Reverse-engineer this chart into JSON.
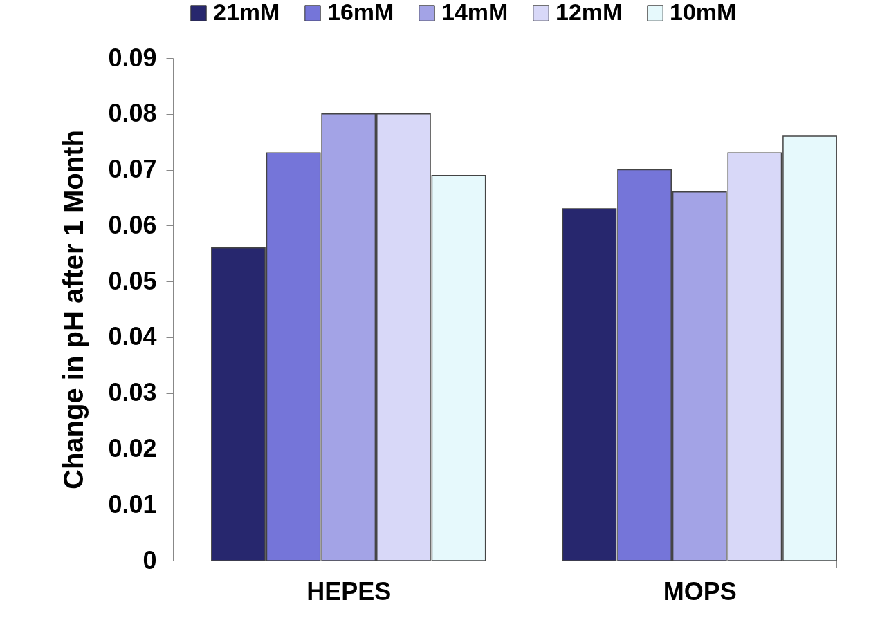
{
  "chart_data": {
    "type": "bar",
    "ylabel": "Change in pH after 1 Month",
    "categories": [
      "HEPES",
      "MOPS"
    ],
    "series": [
      {
        "name": "21mM",
        "color": "#27276e",
        "values": [
          0.056,
          0.063
        ]
      },
      {
        "name": "16mM",
        "color": "#7575d9",
        "values": [
          0.073,
          0.07
        ]
      },
      {
        "name": "14mM",
        "color": "#a3a3e6",
        "values": [
          0.08,
          0.066
        ]
      },
      {
        "name": "12mM",
        "color": "#d8d8f8",
        "values": [
          0.08,
          0.073
        ]
      },
      {
        "name": "10mM",
        "color": "#e6f9fc",
        "values": [
          0.069,
          0.076
        ]
      }
    ],
    "ylim": [
      0,
      0.09
    ],
    "yticks": [
      0,
      0.01,
      0.02,
      0.03,
      0.04,
      0.05,
      0.06,
      0.07,
      0.08,
      0.09
    ],
    "grid": false,
    "legend": "top"
  }
}
